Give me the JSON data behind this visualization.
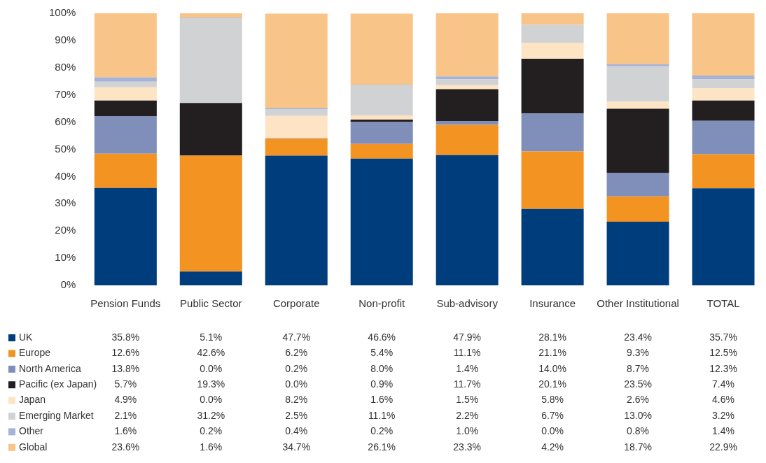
{
  "chart_data": {
    "type": "bar",
    "stacked": true,
    "legend": "bottom",
    "grid": false,
    "categories": [
      "Pension Funds",
      "Public Sector",
      "Corporate",
      "Non-profit",
      "Sub-advisory",
      "Insurance",
      "Other Institutional",
      "TOTAL"
    ],
    "ylim": [
      0,
      100
    ],
    "yticks": [
      {
        "value": 0,
        "label": "0%"
      },
      {
        "value": 10,
        "label": "10%"
      },
      {
        "value": 20,
        "label": "20%"
      },
      {
        "value": 30,
        "label": "30%"
      },
      {
        "value": 40,
        "label": "40%"
      },
      {
        "value": 50,
        "label": "50%"
      },
      {
        "value": 60,
        "label": "60%"
      },
      {
        "value": 70,
        "label": "70%"
      },
      {
        "value": 80,
        "label": "80%"
      },
      {
        "value": 90,
        "label": "90%"
      },
      {
        "value": 100,
        "label": "100%"
      }
    ],
    "series": [
      {
        "name": "UK",
        "color": "#003d7c",
        "values": [
          35.8,
          5.1,
          47.7,
          46.6,
          47.9,
          28.1,
          23.4,
          35.7
        ],
        "value_labels": [
          "35.8%",
          "5.1%",
          "47.7%",
          "46.6%",
          "47.9%",
          "28.1%",
          "23.4%",
          "35.7%"
        ]
      },
      {
        "name": "Europe",
        "color": "#f39321",
        "values": [
          12.6,
          42.6,
          6.2,
          5.4,
          11.1,
          21.1,
          9.3,
          12.5
        ],
        "value_labels": [
          "12.6%",
          "42.6%",
          "6.2%",
          "5.4%",
          "11.1%",
          "21.1%",
          "9.3%",
          "12.5%"
        ]
      },
      {
        "name": "North America",
        "color": "#7f8fba",
        "values": [
          13.8,
          0.0,
          0.2,
          8.0,
          1.4,
          14.0,
          8.7,
          12.3
        ],
        "value_labels": [
          "13.8%",
          "0.0%",
          "0.2%",
          "8.0%",
          "1.4%",
          "14.0%",
          "8.7%",
          "12.3%"
        ]
      },
      {
        "name": "Pacific (ex Japan)",
        "color": "#231f20",
        "values": [
          5.7,
          19.3,
          0.0,
          0.9,
          11.7,
          20.1,
          23.5,
          7.4
        ],
        "value_labels": [
          "5.7%",
          "19.3%",
          "0.0%",
          "0.9%",
          "11.7%",
          "20.1%",
          "23.5%",
          "7.4%"
        ]
      },
      {
        "name": "Japan",
        "color": "#fde4c4",
        "values": [
          4.9,
          0.0,
          8.2,
          1.6,
          1.5,
          5.8,
          2.6,
          4.6
        ],
        "value_labels": [
          "4.9%",
          "0.0%",
          "8.2%",
          "1.6%",
          "1.5%",
          "5.8%",
          "2.6%",
          "4.6%"
        ]
      },
      {
        "name": "Emerging Market",
        "color": "#d1d2d4",
        "values": [
          2.1,
          31.2,
          2.5,
          11.1,
          2.2,
          6.7,
          13.0,
          3.2
        ],
        "value_labels": [
          "2.1%",
          "31.2%",
          "2.5%",
          "11.1%",
          "2.2%",
          "6.7%",
          "13.0%",
          "3.2%"
        ]
      },
      {
        "name": "Other",
        "color": "#a7b3d6",
        "values": [
          1.6,
          0.2,
          0.4,
          0.2,
          1.0,
          0.0,
          0.8,
          1.4
        ],
        "value_labels": [
          "1.6%",
          "0.2%",
          "0.4%",
          "0.2%",
          "1.0%",
          "0.0%",
          "0.8%",
          "1.4%"
        ]
      },
      {
        "name": "Global",
        "color": "#f9c487",
        "values": [
          23.6,
          1.6,
          34.7,
          26.1,
          23.3,
          4.2,
          18.7,
          22.9
        ],
        "value_labels": [
          "23.6%",
          "1.6%",
          "34.7%",
          "26.1%",
          "23.3%",
          "4.2%",
          "18.7%",
          "22.9%"
        ]
      }
    ]
  }
}
